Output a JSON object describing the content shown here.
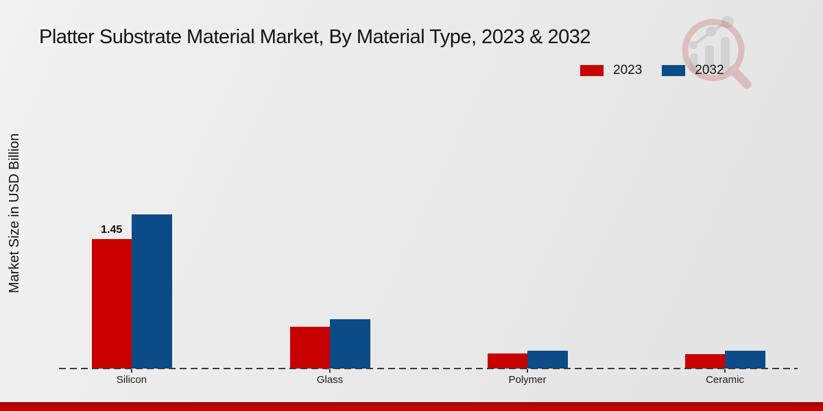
{
  "title": "Platter Substrate Material Market, By Material Type, 2023 & 2032",
  "y_axis_label": "Market Size in USD Billion",
  "legend": {
    "items": [
      {
        "label": "2023",
        "color": "#c80000"
      },
      {
        "label": "2032",
        "color": "#0b4b88"
      }
    ]
  },
  "watermark": {
    "name": "market-research-magnifier-logo"
  },
  "accent_bar_color": "#c40505",
  "chart_data": {
    "type": "bar",
    "title": "Platter Substrate Material Market, By Material Type, 2023 & 2032",
    "categories": [
      "Silicon",
      "Glass",
      "Polymer",
      "Ceramic"
    ],
    "series": [
      {
        "name": "2023",
        "color": "#c80000",
        "values": [
          1.45,
          0.47,
          0.17,
          0.16
        ],
        "point_labels": [
          "1.45",
          "",
          "",
          ""
        ]
      },
      {
        "name": "2032",
        "color": "#0b4b88",
        "values": [
          1.73,
          0.55,
          0.2,
          0.2
        ],
        "point_labels": [
          "",
          "",
          "",
          ""
        ]
      }
    ],
    "xlabel": "",
    "ylabel": "Market Size in USD Billion",
    "ylim": [
      0,
      1.8
    ],
    "grid": false,
    "legend_position": "top-right",
    "baseline_style": "dashed"
  }
}
